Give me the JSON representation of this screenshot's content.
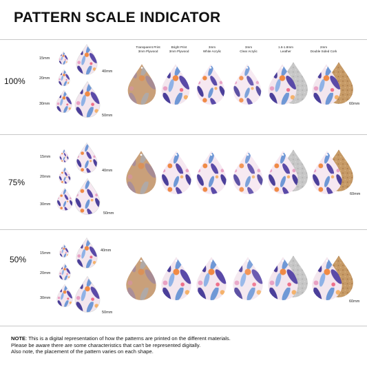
{
  "title": "PATTERN SCALE INDICATOR",
  "sizes": {
    "s15": "15mm",
    "s20": "20mm",
    "s30": "30mm",
    "s40": "40mm",
    "s50": "50mm",
    "s60": "60mm"
  },
  "materials": [
    {
      "line1": "Transparent Print",
      "line2": "3mm Plywood"
    },
    {
      "line1": "Bright Print",
      "line2": "3mm Plywood"
    },
    {
      "line1": "3mm",
      "line2": "White Acrylic"
    },
    {
      "line1": "3mm",
      "line2": "Clear Acrylic"
    },
    {
      "line1": "1.6-1.8mm",
      "line2": "Leather"
    },
    {
      "line1": "2mm",
      "line2": "Double Sided Cork"
    }
  ],
  "sections": [
    {
      "scale": "100%"
    },
    {
      "scale": "75%"
    },
    {
      "scale": "50%"
    }
  ],
  "note": {
    "label": "NOTE",
    "line1": ": This is a digital representation of how the patterns are printed on the different materials.",
    "line2": "Please be aware there are some characteristics that can't be represented digitally.",
    "line3": "Also note, the placement of the pattern varies on each shape."
  },
  "colors": {
    "purple": "#4b3f9a",
    "blue": "#6f98d6",
    "pink": "#e8a1c4",
    "orange": "#f08a45",
    "plywood": "#c9a07a",
    "leather": "#c4c4c4",
    "cork": "#c69a66"
  }
}
